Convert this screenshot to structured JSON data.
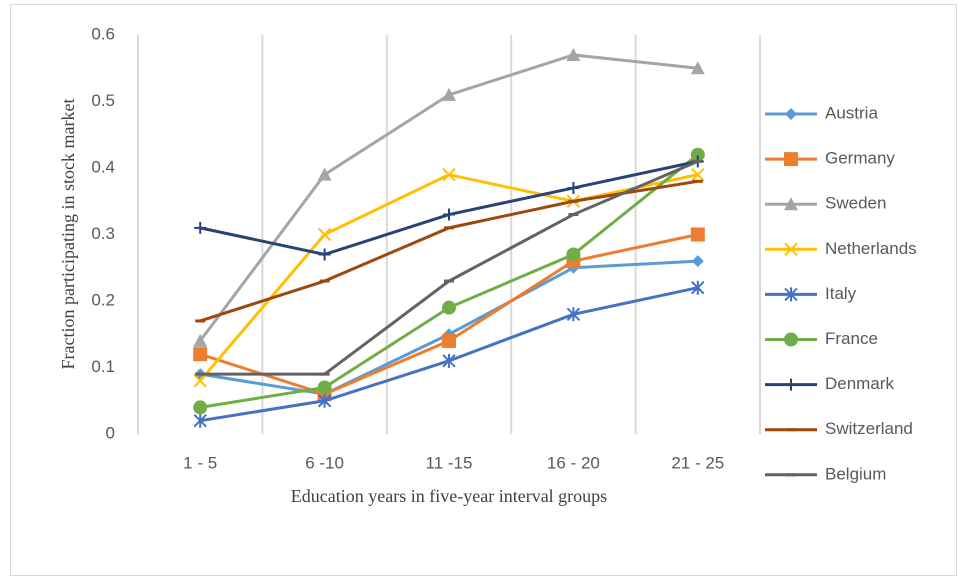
{
  "chart_data": {
    "type": "line",
    "x_label": "Education years in five-year interval groups",
    "y_label": "Fraction participating  in  stock market",
    "categories": [
      "1 - 5",
      "6 -10",
      "11 -15",
      "16 - 20",
      "21 - 25"
    ],
    "ylim": [
      0,
      0.6
    ],
    "yticks": [
      0,
      0.1,
      0.2,
      0.3,
      0.4,
      0.5,
      0.6
    ],
    "grid": true,
    "legend": "right",
    "series": [
      {
        "name": "Austria",
        "color": "#5b9bd5",
        "marker": "diamond",
        "values": [
          0.09,
          0.06,
          0.15,
          0.25,
          0.26
        ]
      },
      {
        "name": "Germany",
        "color": "#ed7d31",
        "marker": "square",
        "values": [
          0.12,
          0.06,
          0.14,
          0.26,
          0.3
        ]
      },
      {
        "name": "Sweden",
        "color": "#a5a5a5",
        "marker": "triangle",
        "values": [
          0.14,
          0.39,
          0.51,
          0.57,
          0.55
        ]
      },
      {
        "name": "Netherlands",
        "color": "#ffc000",
        "marker": "x",
        "values": [
          0.08,
          0.3,
          0.39,
          0.35,
          0.39
        ]
      },
      {
        "name": "Italy",
        "color": "#4472c4",
        "marker": "star",
        "values": [
          0.02,
          0.05,
          0.11,
          0.18,
          0.22
        ]
      },
      {
        "name": "France",
        "color": "#70ad47",
        "marker": "circle",
        "values": [
          0.04,
          0.07,
          0.19,
          0.27,
          0.42
        ]
      },
      {
        "name": "Denmark",
        "color": "#264478",
        "marker": "plus",
        "values": [
          0.31,
          0.27,
          0.33,
          0.37,
          0.41
        ]
      },
      {
        "name": "Switzerland",
        "color": "#9e480e",
        "marker": "dash",
        "values": [
          0.17,
          0.23,
          0.31,
          0.35,
          0.38
        ]
      },
      {
        "name": "Belgium",
        "color": "#636363",
        "marker": "dash",
        "values": [
          0.09,
          0.09,
          0.23,
          0.33,
          0.41
        ]
      }
    ]
  }
}
